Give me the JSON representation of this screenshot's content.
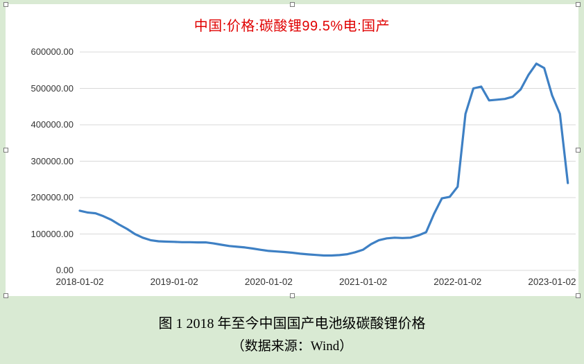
{
  "colors": {
    "background": "#d9ead3",
    "panel": "#ffffff",
    "title": "#e00000",
    "line": "#3e80c4",
    "grid": "#d9d9d9",
    "axis_text": "#333333"
  },
  "caption": {
    "line1": "图 1 2018 年至今中国国产电池级碳酸锂价格",
    "line2": "（数据来源：Wind）"
  },
  "chart_data": {
    "type": "line",
    "title": "中国:价格:碳酸锂99.5%电:国产",
    "xlabel": "",
    "ylabel": "",
    "ylim": [
      0,
      600000
    ],
    "grid": "horizontal",
    "legend": "none",
    "y_tick_values": [
      0,
      100000,
      200000,
      300000,
      400000,
      500000,
      600000
    ],
    "y_tick_labels": [
      "0.00",
      "100000.00",
      "200000.00",
      "300000.00",
      "400000.00",
      "500000.00",
      "600000.00"
    ],
    "x_tick_month_index": [
      0,
      12,
      24,
      36,
      48,
      60
    ],
    "x_tick_labels": [
      "2018-01-02",
      "2019-01-02",
      "2020-01-02",
      "2021-01-02",
      "2022-01-02",
      "2023-01-02"
    ],
    "x_index_max": 63,
    "x": [
      "2018-01",
      "2018-02",
      "2018-03",
      "2018-04",
      "2018-05",
      "2018-06",
      "2018-07",
      "2018-08",
      "2018-09",
      "2018-10",
      "2018-11",
      "2018-12",
      "2019-01",
      "2019-02",
      "2019-03",
      "2019-04",
      "2019-05",
      "2019-06",
      "2019-07",
      "2019-08",
      "2019-09",
      "2019-10",
      "2019-11",
      "2019-12",
      "2020-01",
      "2020-02",
      "2020-03",
      "2020-04",
      "2020-05",
      "2020-06",
      "2020-07",
      "2020-08",
      "2020-09",
      "2020-10",
      "2020-11",
      "2020-12",
      "2021-01",
      "2021-02",
      "2021-03",
      "2021-04",
      "2021-05",
      "2021-06",
      "2021-07",
      "2021-08",
      "2021-09",
      "2021-10",
      "2021-11",
      "2021-12",
      "2022-01",
      "2022-02",
      "2022-03",
      "2022-04",
      "2022-05",
      "2022-06",
      "2022-07",
      "2022-08",
      "2022-09",
      "2022-10",
      "2022-11",
      "2022-12",
      "2023-01",
      "2023-02",
      "2023-03"
    ],
    "values": [
      164000,
      159000,
      157000,
      149000,
      139000,
      126000,
      114000,
      100000,
      90000,
      83000,
      80000,
      79000,
      78500,
      77500,
      77500,
      77000,
      77000,
      74000,
      70500,
      67000,
      65000,
      63000,
      60000,
      56500,
      53500,
      52000,
      50500,
      48500,
      46000,
      44000,
      42500,
      41000,
      41000,
      42000,
      44500,
      50000,
      57000,
      72000,
      83000,
      88000,
      90000,
      89000,
      90000,
      96000,
      105000,
      155000,
      198000,
      202000,
      230000,
      430000,
      500000,
      505000,
      467000,
      469000,
      471000,
      477000,
      497000,
      537000,
      568000,
      556000,
      481000,
      430000,
      240000
    ]
  }
}
